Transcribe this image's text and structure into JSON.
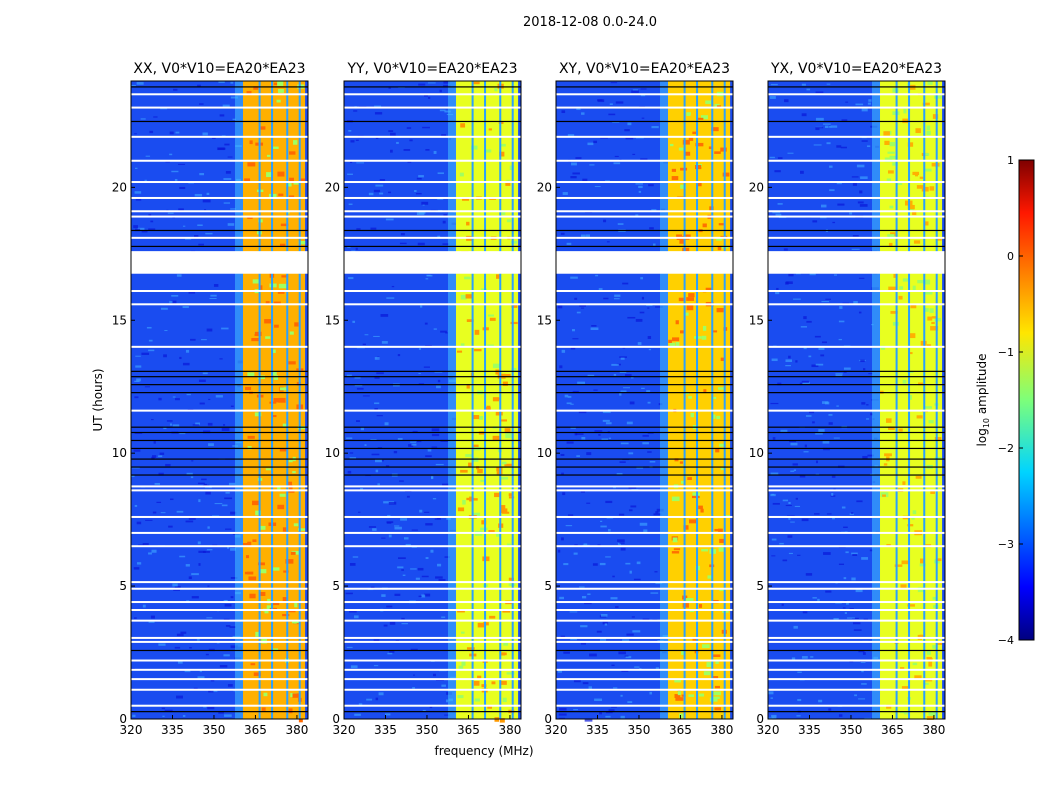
{
  "chart_data": {
    "type": "heatmap",
    "suptitle": "2018-12-08 0.0-24.0",
    "xlabel": "frequency (MHz)",
    "ylabel": "UT (hours)",
    "xlim": [
      320,
      384
    ],
    "ylim": [
      0,
      24
    ],
    "xticks": [
      "320",
      "335",
      "350",
      "365",
      "380"
    ],
    "xtick_values": [
      320,
      335,
      350,
      365,
      380
    ],
    "yticks": [
      "0",
      "5",
      "10",
      "15",
      "20"
    ],
    "ytick_values": [
      0,
      5,
      10,
      15,
      20
    ],
    "colorbar": {
      "label": "log10 amplitude",
      "label_main": "log",
      "label_sub": "10",
      "label_tail": " amplitude",
      "range": [
        -4,
        1
      ],
      "ticks": [
        "1",
        "0",
        "−1",
        "−2",
        "−3",
        "−4"
      ],
      "tick_values": [
        1,
        0,
        -1,
        -2,
        -3,
        -4
      ],
      "colormap": "jet"
    },
    "panels": [
      {
        "title": "XX, V0*V10=EA20*EA23",
        "band_color": "#ffb000",
        "band_alt": "#ff6a00",
        "bg_level": -2.8
      },
      {
        "title": "YY, V0*V10=EA20*EA23",
        "band_color": "#e8ff20",
        "band_alt": "#ff9a00",
        "bg_level": -2.9
      },
      {
        "title": "XY, V0*V10=EA20*EA23",
        "band_color": "#ffd000",
        "band_alt": "#ff7000",
        "bg_level": -2.8
      },
      {
        "title": "YX, V0*V10=EA20*EA23",
        "band_color": "#e8ff20",
        "band_alt": "#ffb000",
        "bg_level": -2.9
      }
    ],
    "band_mhz": [
      360.5,
      383
    ],
    "band_dividers_mhz": [
      366.5,
      371,
      376.5,
      381
    ],
    "flagged_hours_white": [
      0.5,
      1.1,
      1.5,
      1.85,
      2.2,
      2.9,
      3.05,
      3.7,
      4.1,
      4.4,
      4.9,
      5.15,
      6.5,
      7.0,
      7.6,
      8.6,
      8.75,
      11.6,
      14.0,
      15.6,
      16.1,
      16.8,
      17.0,
      17.2,
      17.4,
      18.1,
      18.9,
      19.1,
      19.6,
      20.2,
      21.0,
      21.9,
      23.0,
      23.5
    ],
    "flagged_hours_black": [
      0.3,
      2.6,
      9.2,
      9.5,
      9.8,
      10.2,
      10.5,
      10.8,
      11.0,
      12.3,
      12.6,
      12.9,
      13.1,
      17.8,
      18.4,
      22.5,
      23.8
    ]
  }
}
